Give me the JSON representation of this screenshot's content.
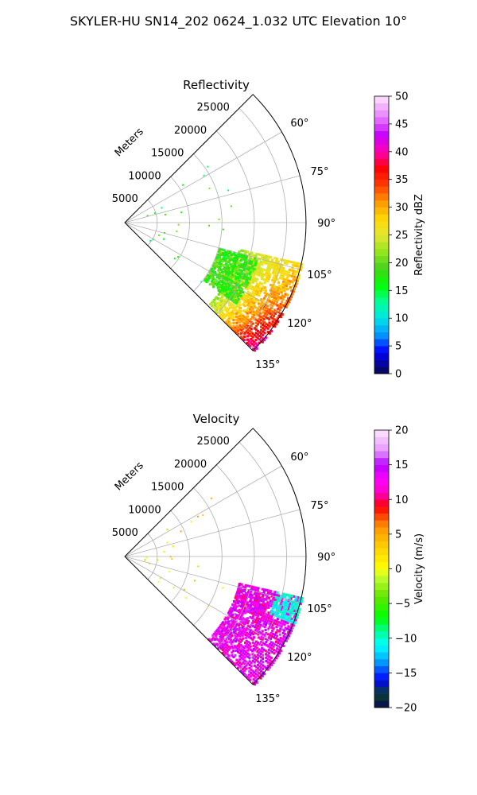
{
  "suptitle": "SKYLER-HU  SN14_202  0624_1.032 UTC Elevation 10°",
  "chart_data": [
    {
      "type": "polar-sector",
      "title": "Reflectivity",
      "radial_label": "Meters",
      "r_ticks": [
        "5000",
        "10000",
        "15000",
        "20000",
        "25000"
      ],
      "theta_ticks": [
        "60°",
        "75°",
        "90°",
        "105°",
        "120°",
        "135°"
      ],
      "theta_range_deg": [
        45,
        135
      ],
      "r_range_m": [
        0,
        28000
      ],
      "colorbar": {
        "label": "Reflectivity dBZ",
        "range": [
          0,
          50
        ],
        "ticks": [
          "0",
          "5",
          "10",
          "15",
          "20",
          "25",
          "30",
          "35",
          "40",
          "45",
          "50"
        ]
      },
      "echo_regions": [
        {
          "theta_deg": [
            103,
            135
          ],
          "r_m": [
            18000,
            28000
          ],
          "dbz_range": [
            20,
            35
          ],
          "description": "main echo band"
        },
        {
          "theta_deg": [
            105,
            126
          ],
          "r_m": [
            15000,
            21000
          ],
          "dbz_range": [
            15,
            22
          ]
        }
      ]
    },
    {
      "type": "polar-sector",
      "title": "Velocity",
      "radial_label": "Meters",
      "r_ticks": [
        "5000",
        "10000",
        "15000",
        "20000",
        "25000"
      ],
      "theta_ticks": [
        "60°",
        "75°",
        "90°",
        "105°",
        "120°",
        "135°"
      ],
      "theta_range_deg": [
        45,
        135
      ],
      "r_range_m": [
        0,
        28000
      ],
      "colorbar": {
        "label": "Velocity (m/s)",
        "range": [
          -20,
          20
        ],
        "ticks": [
          "−20",
          "−15",
          "−10",
          "−5",
          "0",
          "5",
          "10",
          "15",
          "20"
        ]
      },
      "echo_regions": [
        {
          "theta_deg": [
            103,
            135
          ],
          "r_m": [
            18000,
            28000
          ],
          "vel_range": [
            10,
            16
          ]
        },
        {
          "theta_deg": [
            103,
            112
          ],
          "r_m": [
            24000,
            28000
          ],
          "vel_range": [
            -12,
            -9
          ]
        }
      ]
    }
  ]
}
